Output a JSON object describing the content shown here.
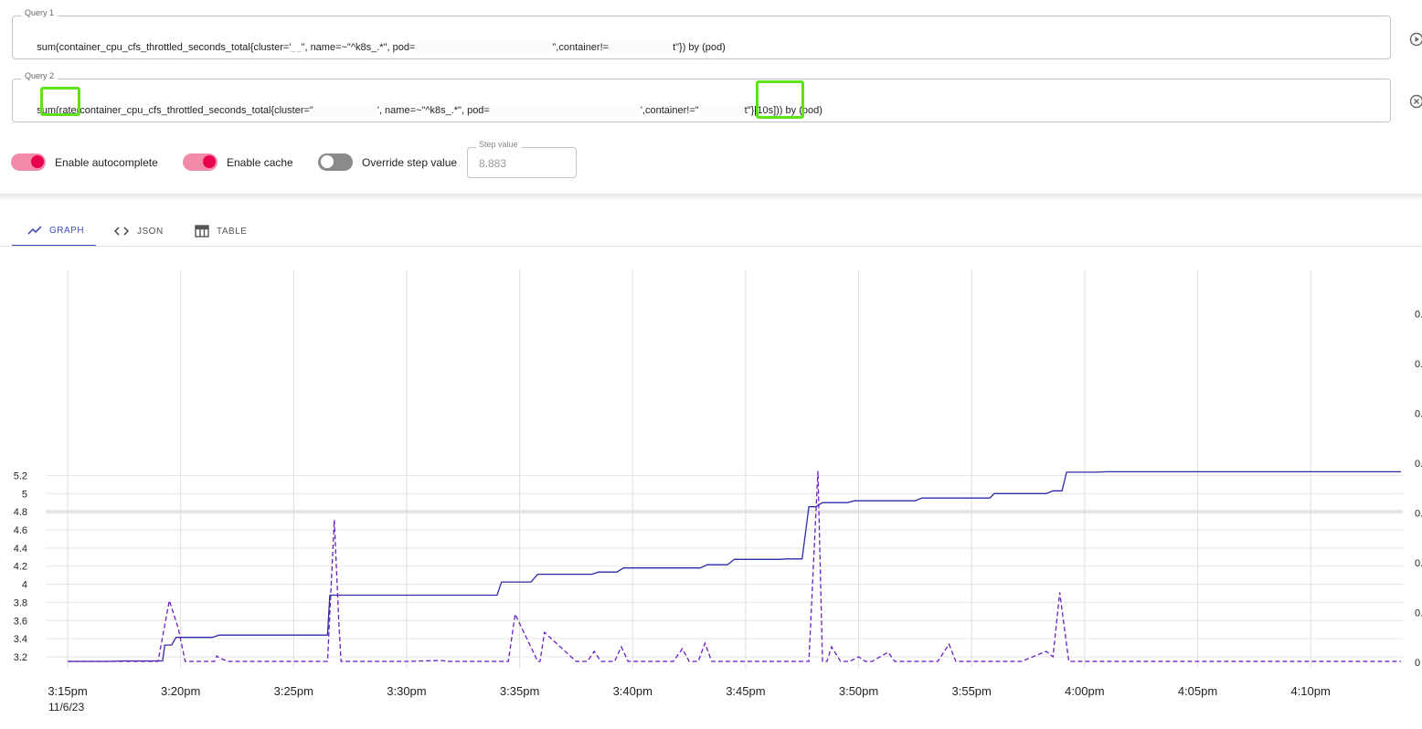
{
  "query1": {
    "legend": "Query 1",
    "segments": [
      "sum(container_cpu_cfs_throttled_seconds_total{cluster='",
      "_ _",
      "\", name=~\"^k8s_.*\", pod=",
      "",
      "\",container!=",
      "",
      "t\"}) by (pod)"
    ]
  },
  "query2": {
    "legend": "Query 2",
    "segments": [
      "sum(rate(container_cpu_cfs_throttled_seconds_total{cluster=\"",
      "",
      "', name=~\"^k8s_.*\", pod=",
      "",
      "',container!=\"",
      "",
      "t\"}[10s])) by (pod)"
    ]
  },
  "controls": {
    "autocomplete_label": "Enable autocomplete",
    "autocomplete_on": true,
    "cache_label": "Enable cache",
    "cache_on": true,
    "override_label": "Override step value",
    "override_on": false,
    "step_legend": "Step value",
    "step_placeholder": "8.883"
  },
  "tabs": [
    {
      "label": "GRAPH",
      "icon": "line-chart-icon",
      "active": true
    },
    {
      "label": "JSON",
      "icon": "code-brackets-icon",
      "active": false
    },
    {
      "label": "TABLE",
      "icon": "table-icon",
      "active": false
    }
  ],
  "accent_colors": {
    "primary": "#3f51b5",
    "toggle_on": "#e8004f",
    "highlight": "#5ee21a"
  },
  "chart_data": {
    "type": "line",
    "date_label": "11/6/23",
    "x_tick_labels": [
      "3:15pm",
      "3:20pm",
      "3:25pm",
      "3:30pm",
      "3:35pm",
      "3:40pm",
      "3:45pm",
      "3:50pm",
      "3:55pm",
      "4:00pm",
      "4:05pm",
      "4:10pm"
    ],
    "x_range_minutes": [
      15,
      74
    ],
    "y_left": {
      "ticks": [
        "3.2",
        "3.4",
        "3.6",
        "3.8",
        "4",
        "4.2",
        "4.4",
        "4.6",
        "4.8",
        "5",
        "5.2"
      ],
      "range": [
        3.14,
        5.3
      ]
    },
    "y_right": {
      "ticks": [
        "0",
        "0.",
        "0.",
        "0.",
        "0.",
        "0.",
        "0.",
        "0.",
        "0."
      ]
    },
    "grid": true,
    "legend": "none",
    "series": [
      {
        "style": "solid",
        "color": "#2e2aa8",
        "x": [
          15,
          16.8,
          17.5,
          19.2,
          19.3,
          19.6,
          19.8,
          21.4,
          21.7,
          26.5,
          26.6,
          34.0,
          34.2,
          35.5,
          35.8,
          38.2,
          38.5,
          39.3,
          39.6,
          43.0,
          43.3,
          44.2,
          44.5,
          46.5,
          46.8,
          47.5,
          47.8,
          48.1,
          48.4,
          49.5,
          49.8,
          52.5,
          52.8,
          55.8,
          56.0,
          58.3,
          58.6,
          59.0,
          59.2,
          60.5,
          61.0,
          74.0
        ],
        "y": [
          3.15,
          3.15,
          3.155,
          3.155,
          3.33,
          3.33,
          3.415,
          3.415,
          3.44,
          3.44,
          3.88,
          3.88,
          4.025,
          4.025,
          4.11,
          4.11,
          4.135,
          4.135,
          4.18,
          4.18,
          4.215,
          4.215,
          4.275,
          4.275,
          4.28,
          4.28,
          4.855,
          4.855,
          4.9,
          4.9,
          4.92,
          4.92,
          4.95,
          4.95,
          5.0,
          5.0,
          5.03,
          5.03,
          5.235,
          5.235,
          5.24,
          5.24
        ]
      },
      {
        "style": "dashed",
        "color": "#6a1fc4",
        "x": [
          15,
          19.0,
          19.5,
          19.9,
          20.2,
          21.5,
          21.6,
          21.7,
          22.1,
          22.5,
          26.5,
          26.8,
          27.0,
          27.1,
          30.0,
          31.5,
          31.9,
          34.2,
          34.5,
          34.8,
          35.8,
          35.9,
          36.1,
          37.5,
          38.0,
          38.3,
          38.6,
          39.2,
          39.5,
          39.8,
          41.8,
          42.2,
          42.5,
          42.9,
          43.2,
          43.5,
          43.8,
          44.2,
          44.6,
          47.8,
          48.2,
          48.4,
          48.6,
          48.8,
          49.2,
          49.6,
          50.0,
          50.3,
          50.6,
          51.3,
          51.6,
          53.5,
          54.0,
          54.3,
          54.6,
          56.5,
          57.2,
          58.3,
          58.6,
          58.9,
          59.3,
          59.7,
          74.0
        ],
        "y": [
          3.15,
          3.15,
          3.82,
          3.51,
          3.15,
          3.15,
          3.21,
          3.19,
          3.15,
          3.15,
          3.15,
          4.71,
          3.57,
          3.15,
          3.15,
          3.16,
          3.15,
          3.15,
          3.15,
          3.67,
          3.15,
          3.15,
          3.47,
          3.15,
          3.15,
          3.26,
          3.15,
          3.15,
          3.31,
          3.15,
          3.15,
          3.29,
          3.15,
          3.15,
          3.35,
          3.15,
          3.15,
          3.15,
          3.15,
          3.15,
          5.25,
          3.15,
          3.15,
          3.31,
          3.15,
          3.15,
          3.2,
          3.15,
          3.15,
          3.25,
          3.15,
          3.15,
          3.34,
          3.15,
          3.15,
          3.15,
          3.15,
          3.26,
          3.2,
          3.91,
          3.15,
          3.15,
          3.15
        ]
      }
    ]
  }
}
